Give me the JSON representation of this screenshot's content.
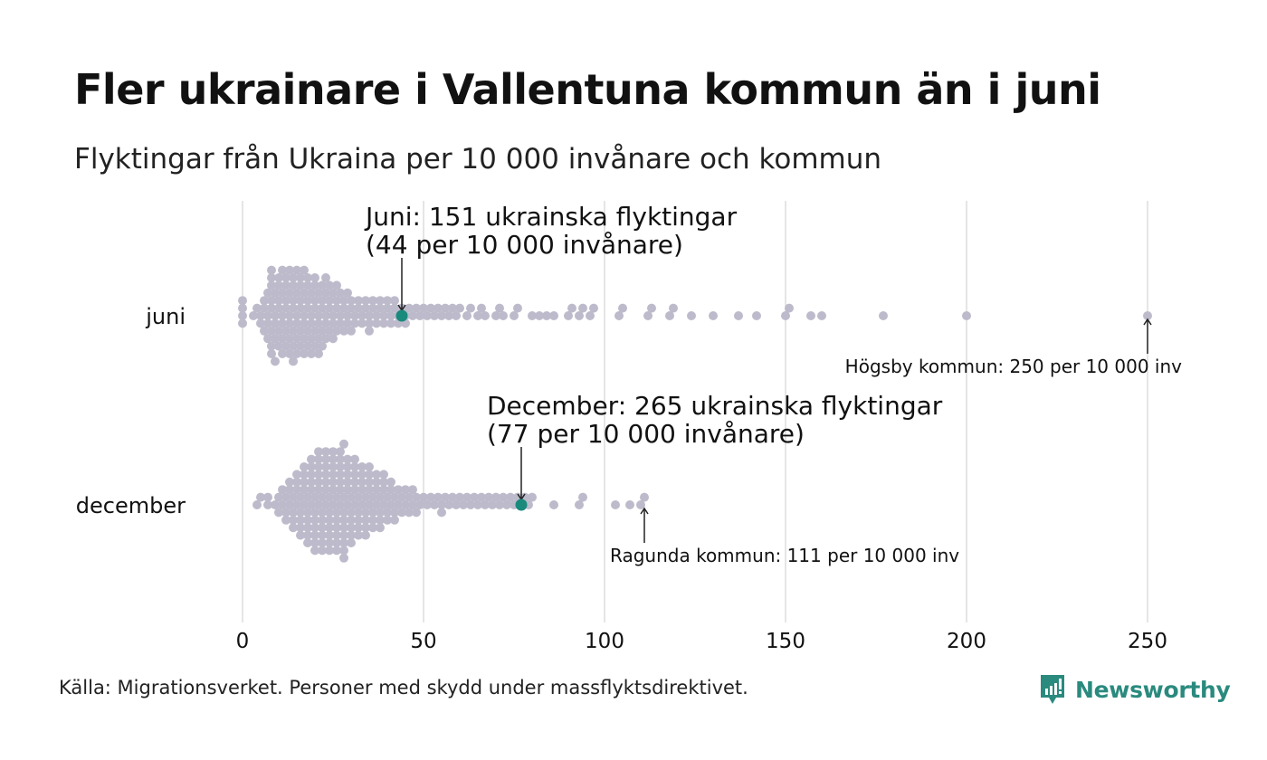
{
  "header": {
    "title": "Fler ukrainare i Vallentuna kommun än i juni",
    "subtitle": "Flyktingar från Ukraina per 10 000 invånare och kommun"
  },
  "footer": {
    "source": "Källa: Migrationsverket. Personer med skydd under massflyktsdirektivet.",
    "brand": "Newsworthy"
  },
  "colors": {
    "dot": "#bdbbcb",
    "highlight": "#1a8a7d",
    "grid": "#d4d4d4",
    "brand": "#2a8a7e"
  },
  "chart_data": {
    "type": "scatter",
    "subtype": "beeswarm",
    "xlabel": "",
    "ylabel": "",
    "xlim": [
      0,
      250
    ],
    "x_ticks": [
      0,
      50,
      100,
      150,
      200,
      250
    ],
    "grid": true,
    "categories": [
      "juni",
      "december"
    ],
    "series": [
      {
        "name": "juni",
        "highlight": {
          "value": 44,
          "label_line1": "Juni: 151 ukrainska flyktingar",
          "label_line2": "(44 per 10 000 invånare)"
        },
        "max_annotation": {
          "value": 250,
          "label": "Högsby kommun: 250 per 10 000 inv"
        },
        "values": [
          0,
          0,
          0,
          0,
          3,
          4,
          5,
          5,
          6,
          6,
          6,
          7,
          7,
          7,
          7,
          8,
          8,
          8,
          8,
          8,
          8,
          8,
          8,
          9,
          9,
          9,
          9,
          9,
          10,
          10,
          10,
          10,
          10,
          10,
          11,
          11,
          11,
          11,
          11,
          11,
          12,
          12,
          12,
          12,
          12,
          12,
          13,
          13,
          13,
          13,
          13,
          13,
          14,
          14,
          14,
          14,
          14,
          14,
          14,
          15,
          15,
          15,
          15,
          15,
          15,
          16,
          16,
          16,
          16,
          16,
          16,
          17,
          17,
          17,
          17,
          17,
          17,
          18,
          18,
          18,
          18,
          18,
          18,
          19,
          19,
          19,
          19,
          19,
          20,
          20,
          20,
          20,
          20,
          20,
          21,
          21,
          21,
          21,
          21,
          22,
          22,
          22,
          22,
          22,
          23,
          23,
          23,
          23,
          23,
          24,
          24,
          24,
          24,
          25,
          25,
          25,
          25,
          26,
          26,
          26,
          26,
          27,
          27,
          27,
          28,
          28,
          28,
          29,
          29,
          29,
          30,
          30,
          30,
          31,
          31,
          32,
          32,
          33,
          33,
          34,
          34,
          35,
          35,
          35,
          36,
          36,
          37,
          37,
          38,
          38,
          39,
          39,
          40,
          40,
          41,
          41,
          42,
          42,
          43,
          43,
          44,
          45,
          45,
          46,
          47,
          48,
          49,
          50,
          51,
          52,
          53,
          54,
          55,
          56,
          57,
          58,
          59,
          60,
          62,
          63,
          65,
          66,
          67,
          70,
          71,
          72,
          75,
          76,
          80,
          82,
          84,
          86,
          90,
          91,
          93,
          94,
          96,
          97,
          104,
          105,
          112,
          113,
          118,
          119,
          124,
          130,
          137,
          142,
          150,
          151,
          157,
          160,
          177,
          200,
          250
        ]
      },
      {
        "name": "december",
        "highlight": {
          "value": 77,
          "label_line1": "December: 265 ukrainska flyktingar",
          "label_line2": "(77 per 10 000 invånare)"
        },
        "max_annotation": {
          "value": 111,
          "label": "Ragunda kommun: 111 per 10 000 inv"
        },
        "values": [
          4,
          5,
          7,
          7,
          9,
          10,
          10,
          11,
          11,
          12,
          12,
          12,
          13,
          13,
          13,
          14,
          14,
          14,
          14,
          15,
          15,
          15,
          15,
          16,
          16,
          16,
          16,
          16,
          17,
          17,
          17,
          17,
          17,
          18,
          18,
          18,
          18,
          18,
          18,
          19,
          19,
          19,
          19,
          19,
          19,
          20,
          20,
          20,
          20,
          20,
          20,
          20,
          21,
          21,
          21,
          21,
          21,
          21,
          21,
          22,
          22,
          22,
          22,
          22,
          22,
          22,
          23,
          23,
          23,
          23,
          23,
          23,
          23,
          24,
          24,
          24,
          24,
          24,
          24,
          24,
          25,
          25,
          25,
          25,
          25,
          25,
          25,
          26,
          26,
          26,
          26,
          26,
          26,
          26,
          27,
          27,
          27,
          27,
          27,
          27,
          27,
          28,
          28,
          28,
          28,
          28,
          28,
          28,
          28,
          28,
          29,
          29,
          29,
          29,
          29,
          29,
          30,
          30,
          30,
          30,
          30,
          30,
          31,
          31,
          31,
          31,
          31,
          31,
          32,
          32,
          32,
          32,
          32,
          33,
          33,
          33,
          33,
          33,
          34,
          34,
          34,
          34,
          34,
          35,
          35,
          35,
          35,
          35,
          36,
          36,
          36,
          36,
          37,
          37,
          37,
          37,
          38,
          38,
          38,
          38,
          39,
          39,
          39,
          39,
          40,
          40,
          40,
          41,
          41,
          41,
          42,
          42,
          42,
          43,
          43,
          44,
          44,
          45,
          45,
          46,
          46,
          47,
          47,
          48,
          48,
          49,
          50,
          51,
          52,
          53,
          54,
          55,
          55,
          56,
          57,
          58,
          59,
          60,
          61,
          62,
          63,
          64,
          65,
          66,
          67,
          68,
          69,
          70,
          71,
          72,
          73,
          74,
          75,
          76,
          77,
          78,
          79,
          80,
          86,
          93,
          94,
          103,
          107,
          110,
          111
        ]
      }
    ]
  }
}
